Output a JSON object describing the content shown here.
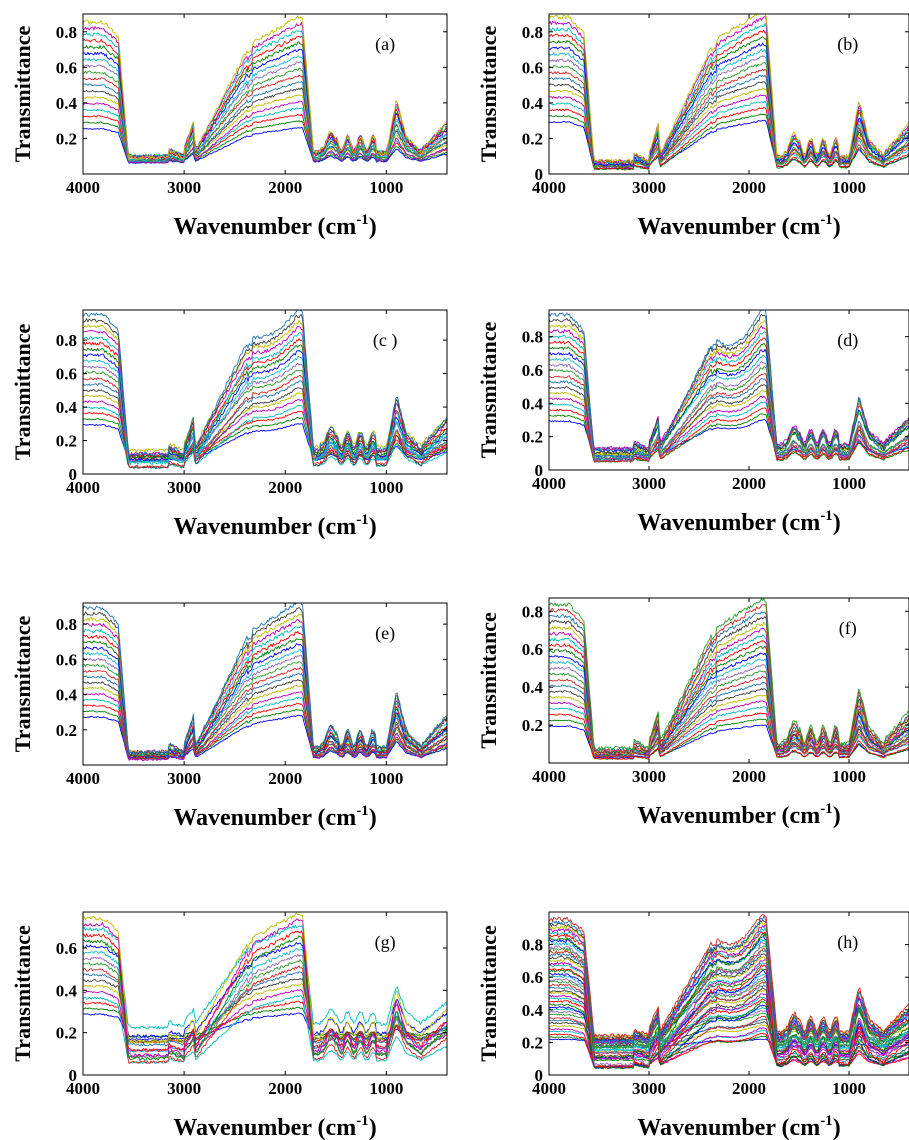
{
  "figure": {
    "palette": [
      "#0000ff",
      "#008000",
      "#ff0000",
      "#00bfbf",
      "#bf00bf",
      "#bfbf00",
      "#404040",
      "#1f77b4",
      "#d62728",
      "#2ca02c",
      "#9467bd",
      "#17becf"
    ]
  },
  "chart_data": [
    {
      "type": "line",
      "panel": "(a)",
      "xlabel": "Wavenumber (cm",
      "xlabel_sup": "-1",
      "xlabel_tail": ")",
      "ylabel": "Transmittance",
      "xlim": [
        4000,
        400
      ],
      "ylim": [
        0,
        0.9
      ],
      "xticks": [
        "4000",
        "3000",
        "2000",
        "1000"
      ],
      "yticks": [
        "0.2",
        "0.4",
        "0.6",
        "0.8"
      ],
      "n_series": 18,
      "max_range": [
        0.26,
        0.88
      ],
      "floor_range": [
        0.03,
        0.06
      ]
    },
    {
      "type": "line",
      "panel": "(b)",
      "xlabel": "Wavenumber (cm",
      "xlabel_sup": "-1",
      "xlabel_tail": ")",
      "ylabel": "Transmittance",
      "xlim": [
        4000,
        400
      ],
      "ylim": [
        0,
        0.9
      ],
      "xticks": [
        "4000",
        "3000",
        "2000",
        "1000"
      ],
      "yticks": [
        "0",
        "0.2",
        "0.4",
        "0.6",
        "0.8"
      ],
      "n_series": 18,
      "max_range": [
        0.3,
        0.91
      ],
      "floor_range": [
        0.0,
        0.02
      ]
    },
    {
      "type": "line",
      "panel": "(c )",
      "xlabel": "Wavenumber (cm",
      "xlabel_sup": "-1",
      "xlabel_tail": ")",
      "ylabel": "Transmittance",
      "xlim": [
        4000,
        400
      ],
      "ylim": [
        0,
        0.98
      ],
      "xticks": [
        "4000",
        "3000",
        "2000",
        "1000"
      ],
      "yticks": [
        "0",
        "0.2",
        "0.4",
        "0.6",
        "0.8"
      ],
      "n_series": 20,
      "max_range": [
        0.3,
        0.98
      ],
      "floor_range": [
        0.0,
        0.09
      ]
    },
    {
      "type": "line",
      "panel": "(d)",
      "xlabel": "Wavenumber (cm",
      "xlabel_sup": "-1",
      "xlabel_tail": ")",
      "ylabel": "Transmittance",
      "xlim": [
        4000,
        400
      ],
      "ylim": [
        0,
        0.96
      ],
      "xticks": [
        "4000",
        "3000",
        "2000",
        "1000"
      ],
      "yticks": [
        "0",
        "0.2",
        "0.4",
        "0.6",
        "0.8"
      ],
      "n_series": 20,
      "max_range": [
        0.3,
        0.96
      ],
      "floor_range": [
        0.01,
        0.09
      ]
    },
    {
      "type": "line",
      "panel": "(e)",
      "xlabel": "Wavenumber (cm",
      "xlabel_sup": "-1",
      "xlabel_tail": ")",
      "ylabel": "Transmittance",
      "xlim": [
        4000,
        400
      ],
      "ylim": [
        0,
        0.92
      ],
      "xticks": [
        "4000",
        "3000",
        "2000",
        "1000"
      ],
      "yticks": [
        "0.2",
        "0.4",
        "0.6",
        "0.8"
      ],
      "n_series": 20,
      "max_range": [
        0.28,
        0.92
      ],
      "floor_range": [
        0.0,
        0.02
      ]
    },
    {
      "type": "line",
      "panel": "(f)",
      "xlabel": "Wavenumber (cm",
      "xlabel_sup": "-1",
      "xlabel_tail": ")",
      "ylabel": "Transmittance",
      "xlim": [
        4000,
        400
      ],
      "ylim": [
        0,
        0.87
      ],
      "xticks": [
        "4000",
        "3000",
        "2000",
        "1000"
      ],
      "yticks": [
        "0.2",
        "0.4",
        "0.6",
        "0.8"
      ],
      "n_series": 22,
      "max_range": [
        0.2,
        0.86
      ],
      "floor_range": [
        0.0,
        0.02
      ]
    },
    {
      "type": "line",
      "panel": "(g)",
      "xlabel": "Wavenumber (cm",
      "xlabel_sup": "-1",
      "xlabel_tail": ")",
      "ylabel": "Transmittance",
      "xlim": [
        4000,
        400
      ],
      "ylim": [
        0,
        0.77
      ],
      "xticks": [
        "4000",
        "3000",
        "2000",
        "1000"
      ],
      "yticks": [
        "0",
        "0.2",
        "0.4",
        "0.6"
      ],
      "n_series": 18,
      "max_range": [
        0.29,
        0.76
      ],
      "floor_range": [
        0.0,
        0.2
      ]
    },
    {
      "type": "line",
      "panel": "(h)",
      "xlabel": "Wavenumber (cm",
      "xlabel_sup": "-1",
      "xlabel_tail": ")",
      "ylabel": "Transmittance",
      "xlim": [
        4000,
        400
      ],
      "ylim": [
        0,
        1.0
      ],
      "xticks": [
        "4000",
        "3000",
        "2000",
        "1000"
      ],
      "yticks": [
        "0",
        "0.2",
        "0.4",
        "0.6",
        "0.8"
      ],
      "n_series": 45,
      "max_range": [
        0.22,
        0.98
      ],
      "floor_range": [
        0.0,
        0.2
      ]
    }
  ]
}
